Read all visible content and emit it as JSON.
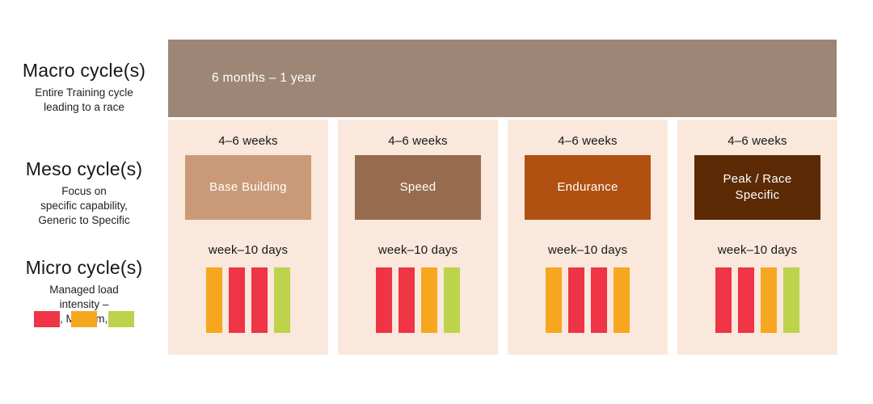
{
  "colors": {
    "red": "#ee3445",
    "orange": "#f7a71f",
    "green": "#bdd34b",
    "macro_bar": "#9d8675",
    "column_bg": "#f9e8db",
    "text": "#171717"
  },
  "rows": {
    "macro": {
      "label": "Macro cycle(s)",
      "description": "Entire Training cycle\nleading to a race",
      "duration": "6 months – 1 year"
    },
    "meso": {
      "label": "Meso cycle(s)",
      "description": "Focus on\nspecific capability,\nGeneric to Specific"
    },
    "micro": {
      "label": "Micro cycle(s)",
      "description": "Managed load\nintensity –\nHigh, Medium, Low",
      "legend": [
        {
          "name": "High",
          "color": "#ee3445"
        },
        {
          "name": "Medium",
          "color": "#f7a71f"
        },
        {
          "name": "Low",
          "color": "#bdd34b"
        }
      ]
    }
  },
  "columns": [
    {
      "weeks_label": "4–6 weeks",
      "meso_label": "Base Building",
      "meso_color": "#ca9a78",
      "micro_label": "week–10 days",
      "micro_bars": [
        "orange",
        "red",
        "red",
        "green"
      ]
    },
    {
      "weeks_label": "4–6 weeks",
      "meso_label": "Speed",
      "meso_color": "#976c4e",
      "micro_label": "week–10 days",
      "micro_bars": [
        "red",
        "red",
        "orange",
        "green"
      ]
    },
    {
      "weeks_label": "4–6 weeks",
      "meso_label": "Endurance",
      "meso_color": "#b05112",
      "micro_label": "week–10 days",
      "micro_bars": [
        "orange",
        "red",
        "red",
        "orange"
      ]
    },
    {
      "weeks_label": "4–6 weeks",
      "meso_label": "Peak / Race Specific",
      "meso_color": "#5c2a05",
      "micro_label": "week–10 days",
      "micro_bars": [
        "red",
        "red",
        "orange",
        "green"
      ]
    }
  ]
}
